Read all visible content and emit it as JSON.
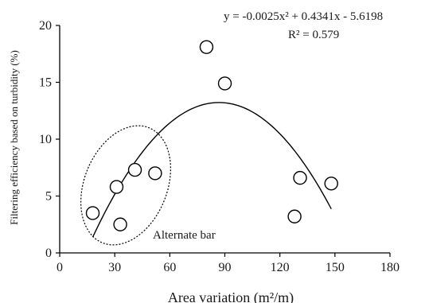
{
  "chart_data": {
    "type": "scatter",
    "xlabel": "Area variation (m²/m)",
    "ylabel": "Filtering efficiency based on turbidity (%)",
    "xlim": [
      0,
      180
    ],
    "ylim": [
      0,
      20
    ],
    "x_ticks": [
      0,
      30,
      60,
      90,
      120,
      150,
      180
    ],
    "y_ticks": [
      0,
      5,
      10,
      15,
      20
    ],
    "x_tick_labels": [
      "0",
      "30",
      "60",
      "90",
      "120",
      "150",
      "180"
    ],
    "y_tick_labels": [
      "0",
      "5",
      "10",
      "15",
      "20"
    ],
    "grid": false,
    "series": [
      {
        "marker": "open-circle",
        "points": [
          {
            "x": 18,
            "y": 3.5
          },
          {
            "x": 31,
            "y": 5.8
          },
          {
            "x": 33,
            "y": 2.5
          },
          {
            "x": 41,
            "y": 7.3
          },
          {
            "x": 52,
            "y": 7.0
          },
          {
            "x": 80,
            "y": 18.1
          },
          {
            "x": 90,
            "y": 14.9
          },
          {
            "x": 128,
            "y": 3.2
          },
          {
            "x": 131,
            "y": 6.6
          },
          {
            "x": 148,
            "y": 6.1
          }
        ]
      }
    ],
    "trendline": {
      "kind": "polynomial",
      "a": -0.0025,
      "b": 0.4341,
      "c": -5.6198,
      "x_range": [
        18,
        148
      ]
    },
    "equation_text": "y = -0.0025x² + 0.4341x - 5.6198",
    "r2_text": "R² = 0.579",
    "annotations": [
      {
        "text": "Alternate bar",
        "style": "dotted-ellipse",
        "color": "#000000"
      }
    ]
  }
}
